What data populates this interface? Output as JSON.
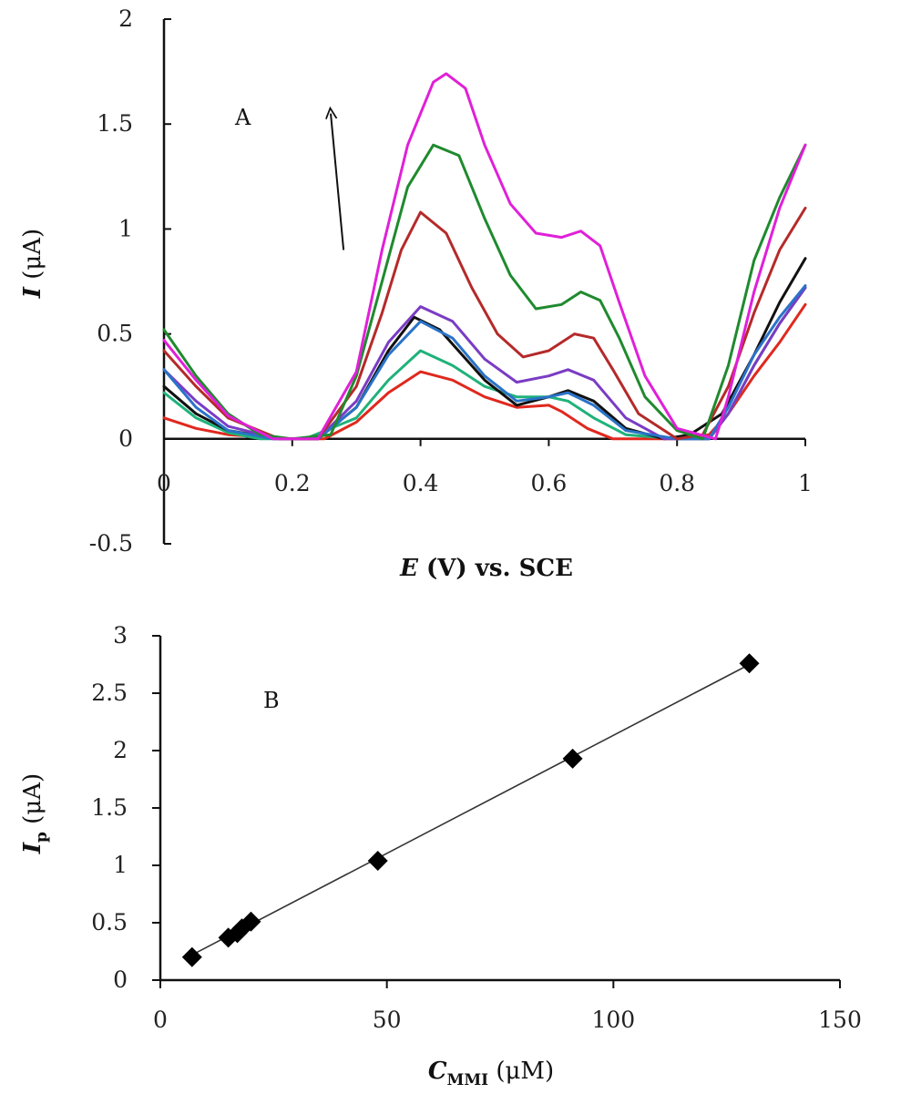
{
  "chart_data": [
    {
      "type": "line",
      "panel_label": "A",
      "xlabel": {
        "symbol": "E",
        "rest": " (V) vs. SCE"
      },
      "ylabel": {
        "symbol": "I",
        "rest": " (μA)"
      },
      "xlim": [
        0,
        1
      ],
      "ylim": [
        -0.5,
        2
      ],
      "x_ticks": [
        "0",
        "0.2",
        "0.4",
        "0.6",
        "0.8",
        "1"
      ],
      "y_ticks": [
        "-0.5",
        "0",
        "0.5",
        "1",
        "1.5",
        "2"
      ],
      "grid": false,
      "arrow": {
        "from": [
          0.28,
          0.9
        ],
        "to": [
          0.26,
          1.55
        ]
      },
      "series": [
        {
          "color": "#e0281e",
          "points": [
            [
              0,
              0.1
            ],
            [
              0.05,
              0.05
            ],
            [
              0.1,
              0.02
            ],
            [
              0.2,
              0
            ],
            [
              0.25,
              0
            ],
            [
              0.3,
              0.08
            ],
            [
              0.35,
              0.22
            ],
            [
              0.4,
              0.32
            ],
            [
              0.45,
              0.28
            ],
            [
              0.5,
              0.2
            ],
            [
              0.55,
              0.15
            ],
            [
              0.6,
              0.16
            ],
            [
              0.62,
              0.13
            ],
            [
              0.66,
              0.05
            ],
            [
              0.7,
              0
            ],
            [
              0.8,
              0
            ],
            [
              0.85,
              0.02
            ],
            [
              0.88,
              0.12
            ],
            [
              0.92,
              0.3
            ],
            [
              0.96,
              0.46
            ],
            [
              1,
              0.64
            ]
          ]
        },
        {
          "color": "#1fb27a",
          "points": [
            [
              0,
              0.22
            ],
            [
              0.05,
              0.1
            ],
            [
              0.1,
              0.03
            ],
            [
              0.15,
              0
            ],
            [
              0.22,
              0
            ],
            [
              0.3,
              0.1
            ],
            [
              0.35,
              0.28
            ],
            [
              0.4,
              0.42
            ],
            [
              0.45,
              0.35
            ],
            [
              0.5,
              0.25
            ],
            [
              0.55,
              0.2
            ],
            [
              0.6,
              0.2
            ],
            [
              0.63,
              0.18
            ],
            [
              0.67,
              0.1
            ],
            [
              0.72,
              0.02
            ],
            [
              0.8,
              0
            ],
            [
              0.85,
              0
            ],
            [
              0.88,
              0.12
            ],
            [
              0.92,
              0.35
            ],
            [
              0.96,
              0.55
            ],
            [
              1,
              0.72
            ]
          ]
        },
        {
          "color": "#111111",
          "points": [
            [
              0,
              0.25
            ],
            [
              0.05,
              0.12
            ],
            [
              0.1,
              0.04
            ],
            [
              0.18,
              0
            ],
            [
              0.24,
              0
            ],
            [
              0.3,
              0.15
            ],
            [
              0.35,
              0.42
            ],
            [
              0.39,
              0.58
            ],
            [
              0.43,
              0.52
            ],
            [
              0.5,
              0.28
            ],
            [
              0.55,
              0.16
            ],
            [
              0.6,
              0.2
            ],
            [
              0.63,
              0.23
            ],
            [
              0.67,
              0.18
            ],
            [
              0.72,
              0.05
            ],
            [
              0.78,
              0
            ],
            [
              0.82,
              0.02
            ],
            [
              0.87,
              0.12
            ],
            [
              0.92,
              0.4
            ],
            [
              0.96,
              0.65
            ],
            [
              1,
              0.86
            ]
          ]
        },
        {
          "color": "#7a3cc4",
          "points": [
            [
              0,
              0.33
            ],
            [
              0.05,
              0.18
            ],
            [
              0.1,
              0.06
            ],
            [
              0.18,
              0
            ],
            [
              0.24,
              0
            ],
            [
              0.3,
              0.18
            ],
            [
              0.35,
              0.46
            ],
            [
              0.4,
              0.63
            ],
            [
              0.45,
              0.56
            ],
            [
              0.5,
              0.38
            ],
            [
              0.55,
              0.27
            ],
            [
              0.6,
              0.3
            ],
            [
              0.63,
              0.33
            ],
            [
              0.67,
              0.28
            ],
            [
              0.72,
              0.1
            ],
            [
              0.78,
              0
            ],
            [
              0.85,
              0
            ],
            [
              0.88,
              0.12
            ],
            [
              0.92,
              0.35
            ],
            [
              0.96,
              0.55
            ],
            [
              1,
              0.72
            ]
          ]
        },
        {
          "color": "#2a73c8",
          "points": [
            [
              0,
              0.33
            ],
            [
              0.05,
              0.15
            ],
            [
              0.1,
              0.04
            ],
            [
              0.17,
              0
            ],
            [
              0.24,
              0
            ],
            [
              0.3,
              0.15
            ],
            [
              0.35,
              0.4
            ],
            [
              0.4,
              0.56
            ],
            [
              0.45,
              0.48
            ],
            [
              0.5,
              0.3
            ],
            [
              0.55,
              0.18
            ],
            [
              0.6,
              0.2
            ],
            [
              0.63,
              0.22
            ],
            [
              0.67,
              0.16
            ],
            [
              0.72,
              0.04
            ],
            [
              0.8,
              0
            ],
            [
              0.85,
              0
            ],
            [
              0.88,
              0.15
            ],
            [
              0.92,
              0.4
            ],
            [
              0.96,
              0.58
            ],
            [
              1,
              0.73
            ]
          ]
        },
        {
          "color": "#b52a2a",
          "points": [
            [
              0,
              0.42
            ],
            [
              0.05,
              0.25
            ],
            [
              0.1,
              0.1
            ],
            [
              0.18,
              0
            ],
            [
              0.24,
              0
            ],
            [
              0.3,
              0.25
            ],
            [
              0.34,
              0.6
            ],
            [
              0.37,
              0.9
            ],
            [
              0.4,
              1.08
            ],
            [
              0.44,
              0.98
            ],
            [
              0.48,
              0.72
            ],
            [
              0.52,
              0.5
            ],
            [
              0.56,
              0.39
            ],
            [
              0.6,
              0.42
            ],
            [
              0.64,
              0.5
            ],
            [
              0.67,
              0.48
            ],
            [
              0.7,
              0.33
            ],
            [
              0.74,
              0.12
            ],
            [
              0.8,
              0
            ],
            [
              0.84,
              0.02
            ],
            [
              0.88,
              0.25
            ],
            [
              0.92,
              0.6
            ],
            [
              0.96,
              0.9
            ],
            [
              1,
              1.1
            ]
          ]
        },
        {
          "color": "#1f8a2e",
          "points": [
            [
              0,
              0.52
            ],
            [
              0.05,
              0.3
            ],
            [
              0.1,
              0.12
            ],
            [
              0.15,
              0.02
            ],
            [
              0.2,
              0
            ],
            [
              0.26,
              0.02
            ],
            [
              0.3,
              0.3
            ],
            [
              0.34,
              0.75
            ],
            [
              0.38,
              1.2
            ],
            [
              0.42,
              1.4
            ],
            [
              0.46,
              1.35
            ],
            [
              0.5,
              1.05
            ],
            [
              0.54,
              0.78
            ],
            [
              0.58,
              0.62
            ],
            [
              0.62,
              0.64
            ],
            [
              0.65,
              0.7
            ],
            [
              0.68,
              0.66
            ],
            [
              0.71,
              0.48
            ],
            [
              0.75,
              0.2
            ],
            [
              0.8,
              0.04
            ],
            [
              0.84,
              0
            ],
            [
              0.88,
              0.35
            ],
            [
              0.92,
              0.85
            ],
            [
              0.96,
              1.15
            ],
            [
              1,
              1.4
            ]
          ]
        },
        {
          "color": "#e020d8",
          "points": [
            [
              0,
              0.47
            ],
            [
              0.05,
              0.28
            ],
            [
              0.1,
              0.11
            ],
            [
              0.17,
              0
            ],
            [
              0.24,
              0
            ],
            [
              0.3,
              0.32
            ],
            [
              0.34,
              0.9
            ],
            [
              0.38,
              1.4
            ],
            [
              0.42,
              1.7
            ],
            [
              0.44,
              1.74
            ],
            [
              0.47,
              1.67
            ],
            [
              0.5,
              1.4
            ],
            [
              0.54,
              1.12
            ],
            [
              0.58,
              0.98
            ],
            [
              0.62,
              0.96
            ],
            [
              0.65,
              0.99
            ],
            [
              0.68,
              0.92
            ],
            [
              0.71,
              0.65
            ],
            [
              0.75,
              0.3
            ],
            [
              0.8,
              0.05
            ],
            [
              0.86,
              0
            ],
            [
              0.88,
              0.2
            ],
            [
              0.92,
              0.7
            ],
            [
              0.96,
              1.1
            ],
            [
              1,
              1.4
            ]
          ]
        }
      ]
    },
    {
      "type": "scatter",
      "panel_label": "B",
      "xlabel": {
        "symbol": "C",
        "sub": "MMI",
        "rest": " (μM)"
      },
      "ylabel": {
        "symbol": "I",
        "sub": "p",
        "rest": " (μA)"
      },
      "xlim": [
        0,
        150
      ],
      "ylim": [
        0,
        3
      ],
      "x_ticks": [
        "0",
        "50",
        "100",
        "150"
      ],
      "y_ticks": [
        "0",
        "0.5",
        "1",
        "1.5",
        "2",
        "2.5",
        "3"
      ],
      "grid": false,
      "x": [
        7,
        15,
        17,
        18,
        20,
        48,
        91,
        130
      ],
      "y": [
        0.2,
        0.37,
        0.41,
        0.45,
        0.51,
        1.04,
        1.93,
        2.76
      ],
      "trendline": {
        "x": [
          7,
          130
        ],
        "y": [
          0.22,
          2.75
        ]
      }
    }
  ]
}
